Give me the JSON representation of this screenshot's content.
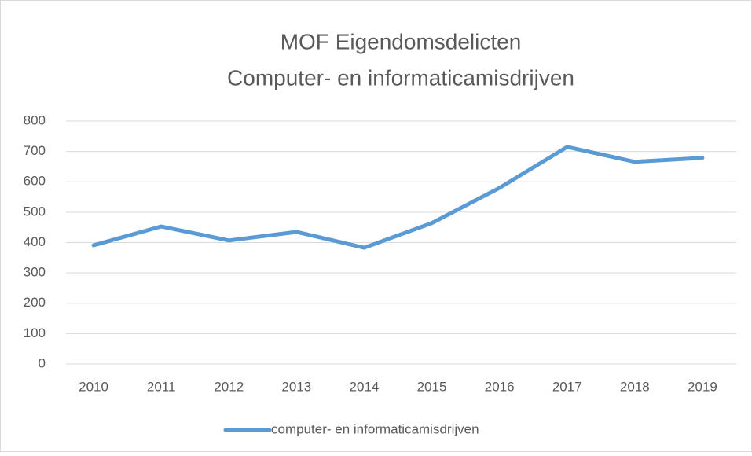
{
  "chart_data": {
    "type": "line",
    "title": "MOF Eigendomsdelicten",
    "subtitle": "Computer- en informaticamisdrijven",
    "categories": [
      "2010",
      "2011",
      "2012",
      "2013",
      "2014",
      "2015",
      "2016",
      "2017",
      "2018",
      "2019"
    ],
    "series": [
      {
        "name": "computer- en informaticamisdrijven",
        "color": "#5b9bd5",
        "values": [
          391,
          453,
          407,
          435,
          383,
          464,
          580,
          715,
          666,
          679
        ]
      }
    ],
    "ylim": [
      0,
      800
    ],
    "yticks": [
      0,
      100,
      200,
      300,
      400,
      500,
      600,
      700,
      800
    ],
    "grid": true,
    "legend": "bottom"
  }
}
